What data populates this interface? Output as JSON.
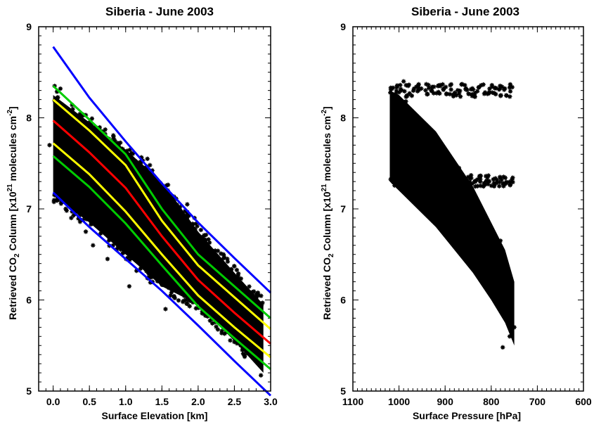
{
  "chart_data": [
    {
      "type": "scatter",
      "title": "Siberia - June 2003",
      "xlabel": "Surface Elevation [km]",
      "ylabel": {
        "prefix": "Retrieved CO",
        "sub": "2",
        "mid": " Column [x10",
        "sup": "21",
        "suffix": " molecules cm",
        "sup2": "-2",
        "end": "]"
      },
      "xlim": [
        -0.2,
        3.0
      ],
      "ylim": [
        5,
        9
      ],
      "x_ticks": [
        "0.0",
        "0.5",
        "1.0",
        "1.5",
        "2.0",
        "2.5",
        "3.0"
      ],
      "y_ticks": [
        "5",
        "6",
        "7",
        "8",
        "9"
      ],
      "scatter_color": "#000000",
      "scatter_cloud": {
        "x_range": [
          0.0,
          2.9
        ],
        "upper": [
          [
            0.0,
            8.25
          ],
          [
            0.5,
            7.95
          ],
          [
            1.0,
            7.65
          ],
          [
            1.5,
            7.3
          ],
          [
            2.0,
            6.75
          ],
          [
            2.5,
            6.3
          ],
          [
            2.9,
            5.95
          ]
        ],
        "lower": [
          [
            0.0,
            7.15
          ],
          [
            0.5,
            6.85
          ],
          [
            1.0,
            6.5
          ],
          [
            1.5,
            6.15
          ],
          [
            2.0,
            5.95
          ],
          [
            2.5,
            5.55
          ],
          [
            2.9,
            5.2
          ]
        ]
      },
      "series": [
        {
          "color": "#0000ff",
          "x": [
            0.0,
            0.5,
            1.0,
            1.5,
            2.0,
            2.5,
            3.0
          ],
          "y": [
            8.78,
            8.22,
            7.74,
            7.28,
            6.85,
            6.46,
            6.08
          ]
        },
        {
          "color": "#00cc00",
          "x": [
            0.0,
            0.5,
            1.0,
            1.5,
            2.0,
            2.5,
            3.0
          ],
          "y": [
            8.35,
            7.98,
            7.6,
            7.0,
            6.5,
            6.15,
            5.8
          ]
        },
        {
          "color": "#ffff00",
          "x": [
            0.0,
            0.5,
            1.0,
            1.5,
            2.0,
            2.5,
            3.0
          ],
          "y": [
            8.2,
            7.86,
            7.48,
            6.87,
            6.38,
            6.03,
            5.68
          ]
        },
        {
          "color": "#ff0000",
          "x": [
            0.0,
            0.5,
            1.0,
            1.5,
            2.0,
            2.5,
            3.0
          ],
          "y": [
            7.97,
            7.62,
            7.23,
            6.7,
            6.22,
            5.86,
            5.52
          ]
        },
        {
          "color": "#ffff00",
          "x": [
            0.0,
            0.5,
            1.0,
            1.5,
            2.0,
            2.5,
            3.0
          ],
          "y": [
            7.72,
            7.38,
            6.97,
            6.5,
            6.05,
            5.7,
            5.37
          ]
        },
        {
          "color": "#00cc00",
          "x": [
            0.0,
            0.5,
            1.0,
            1.5,
            2.0,
            2.5,
            3.0
          ],
          "y": [
            7.58,
            7.24,
            6.84,
            6.38,
            5.93,
            5.58,
            5.24
          ]
        },
        {
          "color": "#0000ff",
          "x": [
            0.0,
            0.5,
            1.0,
            1.5,
            2.0,
            2.5,
            3.0
          ],
          "y": [
            7.18,
            6.8,
            6.45,
            6.1,
            5.72,
            5.33,
            4.95
          ]
        }
      ],
      "outliers": [
        [
          -0.05,
          7.7
        ],
        [
          0.02,
          8.35
        ],
        [
          0.1,
          8.32
        ],
        [
          0.25,
          6.9
        ],
        [
          0.45,
          6.75
        ],
        [
          0.55,
          6.6
        ],
        [
          0.75,
          6.45
        ],
        [
          1.05,
          6.15
        ],
        [
          1.15,
          6.32
        ],
        [
          1.55,
          5.9
        ],
        [
          1.62,
          6.05
        ],
        [
          1.75,
          6.2
        ],
        [
          1.85,
          7.05
        ],
        [
          1.95,
          6.9
        ],
        [
          2.1,
          6.1
        ],
        [
          2.2,
          5.85
        ],
        [
          2.35,
          6.5
        ],
        [
          2.45,
          5.65
        ],
        [
          2.6,
          5.85
        ],
        [
          2.72,
          5.55
        ],
        [
          2.85,
          5.9
        ],
        [
          1.3,
          7.55
        ],
        [
          0.85,
          7.75
        ]
      ],
      "grid": false
    },
    {
      "type": "scatter",
      "title": "Siberia - June 2003",
      "xlabel": "Surface Pressure [hPa]",
      "ylabel": {
        "prefix": "Retrieved CO",
        "sub": "2",
        "mid": " Column [x10",
        "sup": "21",
        "suffix": " molecules cm",
        "sup2": "-2",
        "end": "]"
      },
      "xlim": [
        1100,
        600
      ],
      "ylim": [
        5,
        9
      ],
      "x_ticks": [
        "1100",
        "1000",
        "900",
        "800",
        "700",
        "600"
      ],
      "y_ticks": [
        "5",
        "6",
        "7",
        "8",
        "9"
      ],
      "scatter_color": "#000000",
      "scatter_cloud": {
        "upper": [
          [
            1020,
            8.3
          ],
          [
            1000,
            8.25
          ],
          [
            960,
            8.05
          ],
          [
            920,
            7.85
          ],
          [
            880,
            7.55
          ],
          [
            840,
            7.25
          ],
          [
            800,
            6.85
          ],
          [
            770,
            6.55
          ],
          [
            750,
            6.2
          ]
        ],
        "lower": [
          [
            1020,
            7.3
          ],
          [
            1000,
            7.2
          ],
          [
            960,
            7.0
          ],
          [
            920,
            6.8
          ],
          [
            880,
            6.55
          ],
          [
            840,
            6.3
          ],
          [
            800,
            6.0
          ],
          [
            770,
            5.75
          ],
          [
            750,
            5.5
          ]
        ]
      },
      "outliers": [
        [
          1013,
          8.33
        ],
        [
          990,
          8.4
        ],
        [
          985,
          8.18
        ],
        [
          1000,
          8.28
        ],
        [
          985,
          7.92
        ],
        [
          870,
          7.45
        ],
        [
          850,
          7.35
        ],
        [
          930,
          7.2
        ],
        [
          910,
          7.0
        ],
        [
          830,
          6.95
        ],
        [
          815,
          6.85
        ],
        [
          795,
          6.6
        ],
        [
          780,
          6.65
        ],
        [
          785,
          6.0
        ],
        [
          775,
          5.9
        ],
        [
          760,
          5.82
        ],
        [
          750,
          5.7
        ],
        [
          760,
          5.6
        ],
        [
          755,
          5.75
        ],
        [
          775,
          5.48
        ],
        [
          800,
          6.2
        ]
      ],
      "grid": false
    }
  ]
}
